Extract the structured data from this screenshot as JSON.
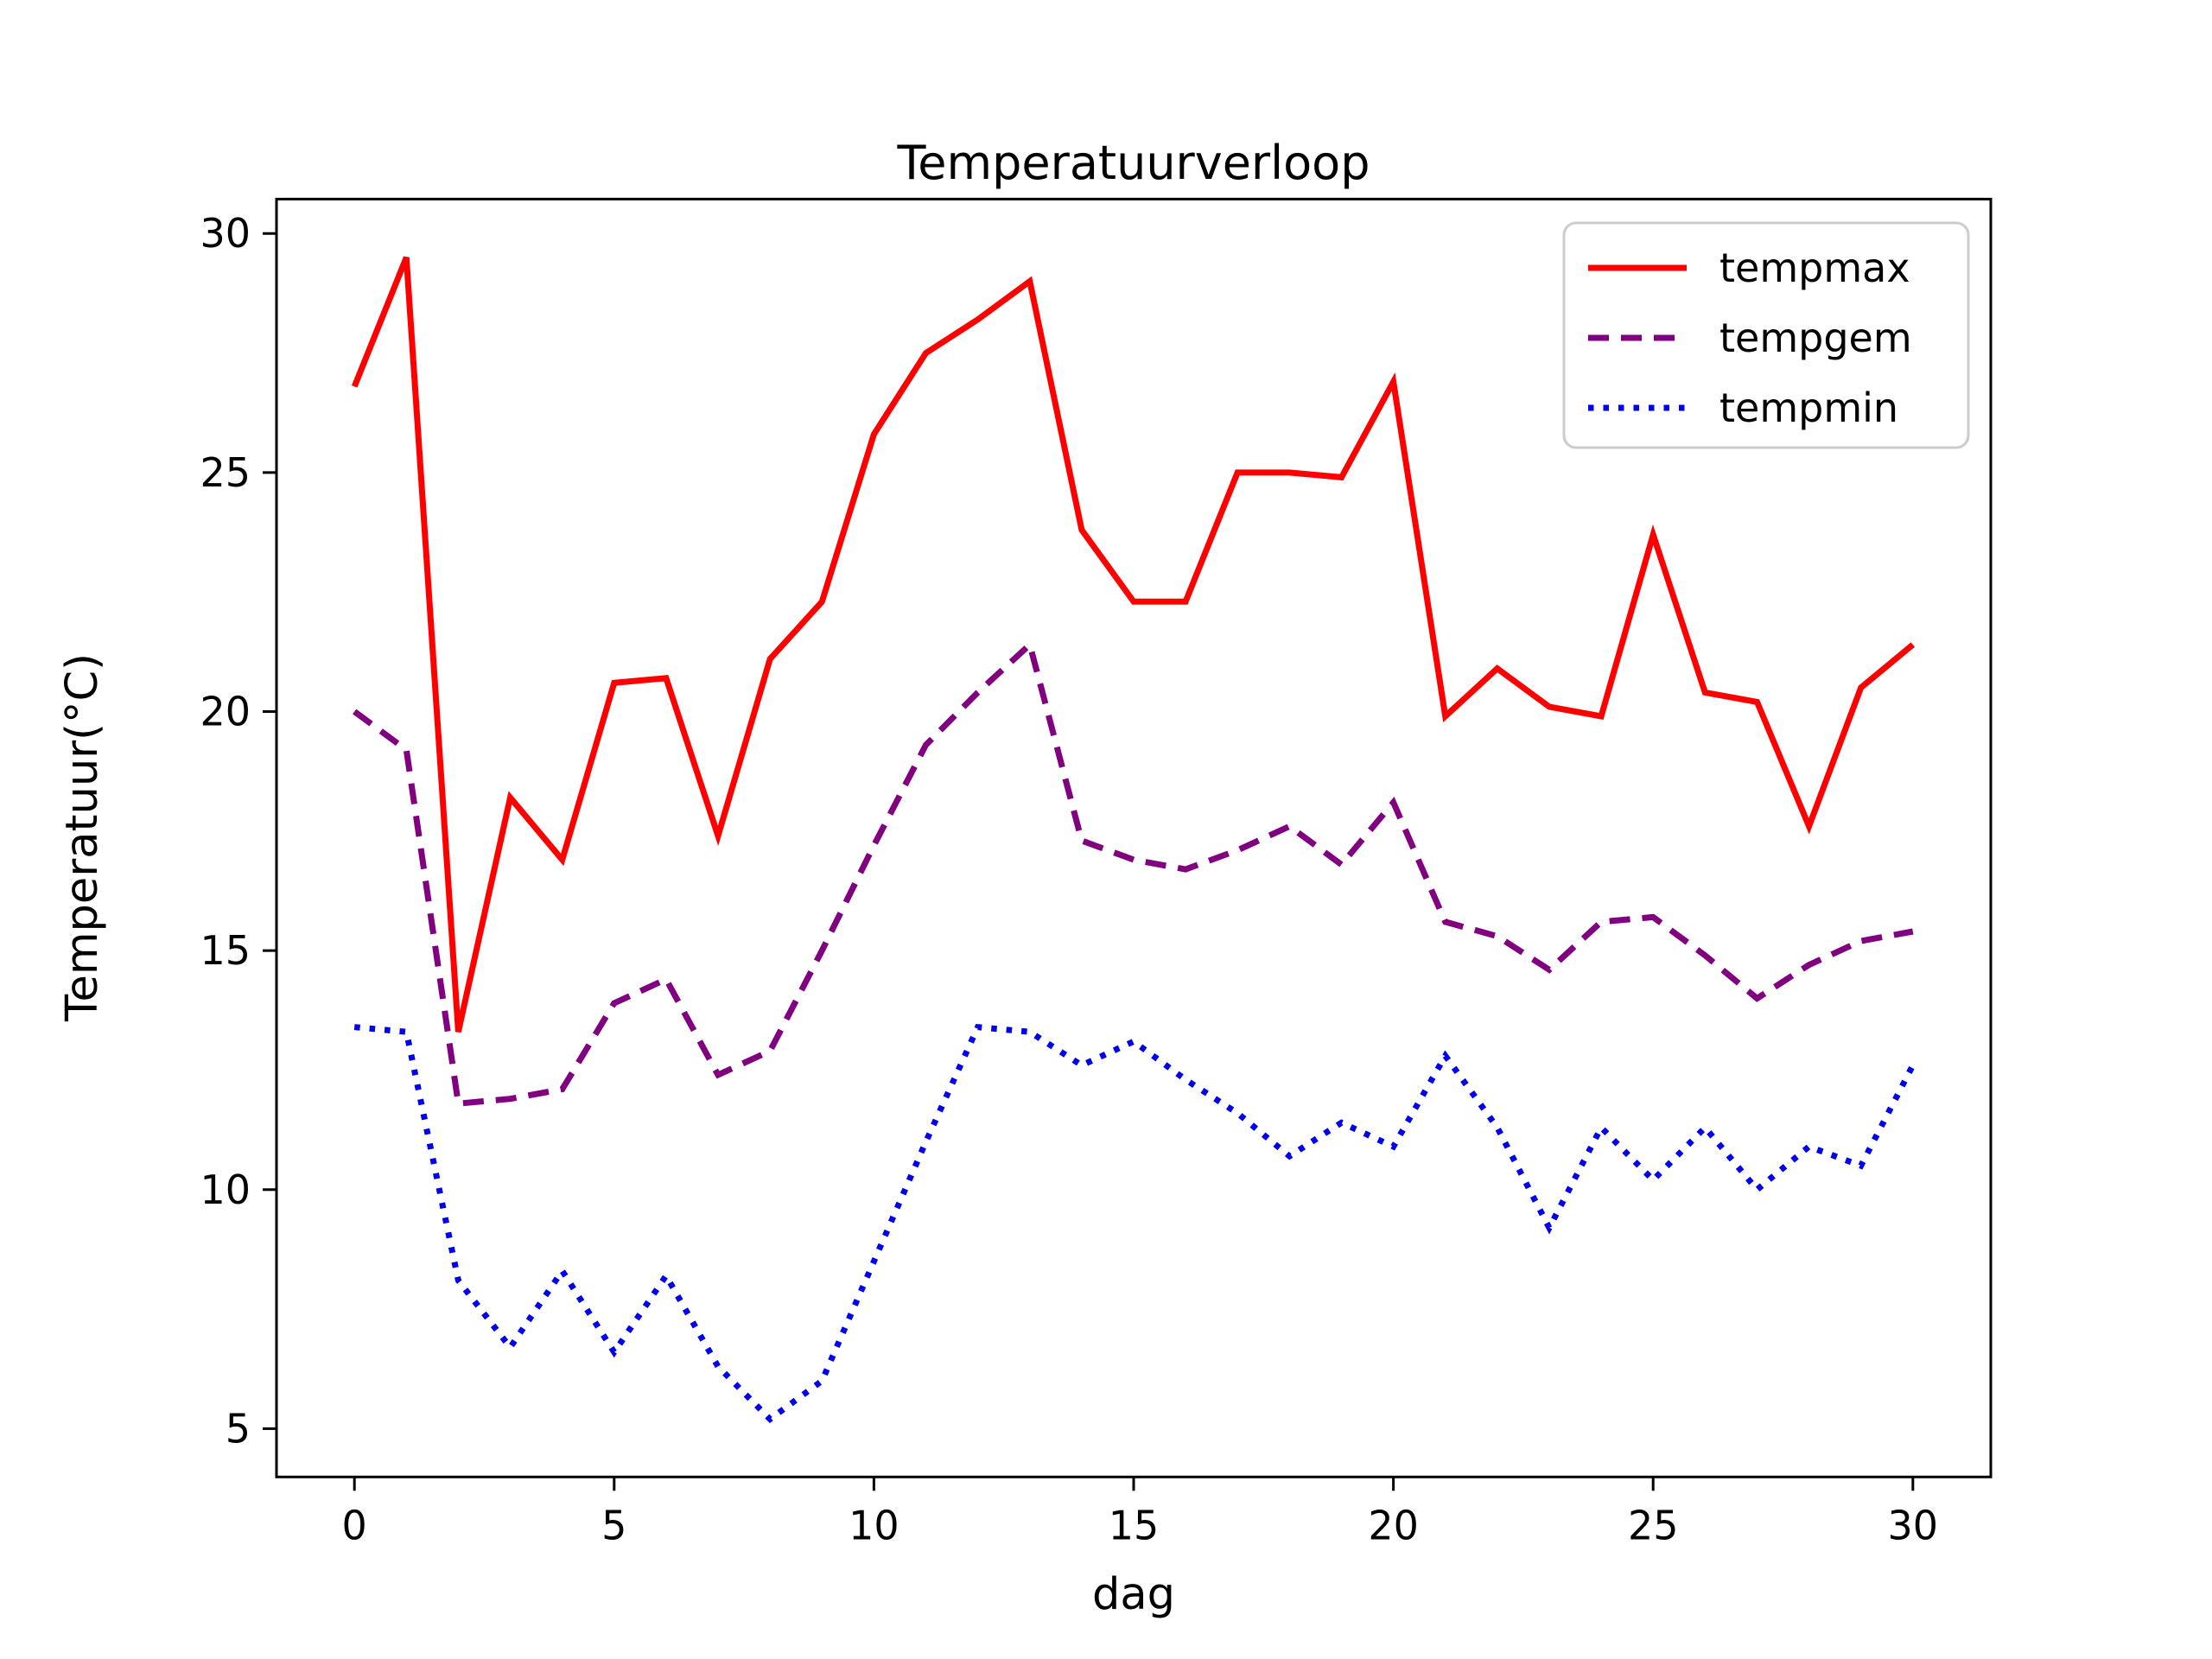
{
  "title": "Temperatuurverloop",
  "chart_data": {
    "type": "line",
    "title": "Temperatuurverloop",
    "xlabel": "dag",
    "ylabel": "Temperatuur(°C)",
    "x": [
      0,
      1,
      2,
      3,
      4,
      5,
      6,
      7,
      8,
      9,
      10,
      11,
      12,
      13,
      14,
      15,
      16,
      17,
      18,
      19,
      20,
      21,
      22,
      23,
      24,
      25,
      26,
      27,
      28,
      29,
      30
    ],
    "series": [
      {
        "name": "tempmax",
        "color": "#ff0000",
        "style": "solid",
        "values": [
          26.8,
          29.5,
          13.3,
          18.2,
          16.9,
          20.6,
          20.7,
          17.4,
          21.1,
          22.3,
          25.8,
          27.5,
          28.2,
          29.0,
          23.8,
          22.3,
          22.3,
          25.0,
          25.0,
          24.9,
          26.9,
          19.9,
          20.9,
          20.1,
          19.9,
          23.7,
          20.4,
          20.2,
          17.6,
          20.5,
          21.4
        ]
      },
      {
        "name": "tempgem",
        "color": "#800080",
        "style": "dashed",
        "values": [
          20.0,
          19.2,
          11.8,
          11.9,
          12.1,
          13.9,
          14.4,
          12.4,
          12.9,
          15.0,
          17.2,
          19.3,
          20.4,
          21.4,
          17.3,
          16.9,
          16.7,
          17.1,
          17.6,
          16.8,
          18.1,
          15.6,
          15.3,
          14.6,
          15.6,
          15.7,
          14.9,
          14.0,
          14.7,
          15.2,
          15.4
        ]
      },
      {
        "name": "tempmin",
        "color": "#0000ee",
        "style": "dotted",
        "values": [
          13.4,
          13.3,
          8.1,
          6.7,
          8.3,
          6.6,
          8.2,
          6.3,
          5.2,
          6.0,
          8.5,
          11.0,
          13.4,
          13.3,
          12.6,
          13.1,
          12.3,
          11.6,
          10.7,
          11.4,
          10.9,
          12.8,
          11.3,
          9.2,
          11.3,
          10.2,
          11.3,
          10.0,
          10.9,
          10.5,
          12.6
        ]
      }
    ],
    "xticks": [
      0,
      5,
      10,
      15,
      20,
      25,
      30
    ],
    "yticks": [
      5,
      10,
      15,
      20,
      25,
      30
    ],
    "xlim": [
      -1.5,
      31.5
    ],
    "ylim": [
      3.99,
      30.72
    ],
    "grid": false,
    "legend_position": "upper right"
  }
}
